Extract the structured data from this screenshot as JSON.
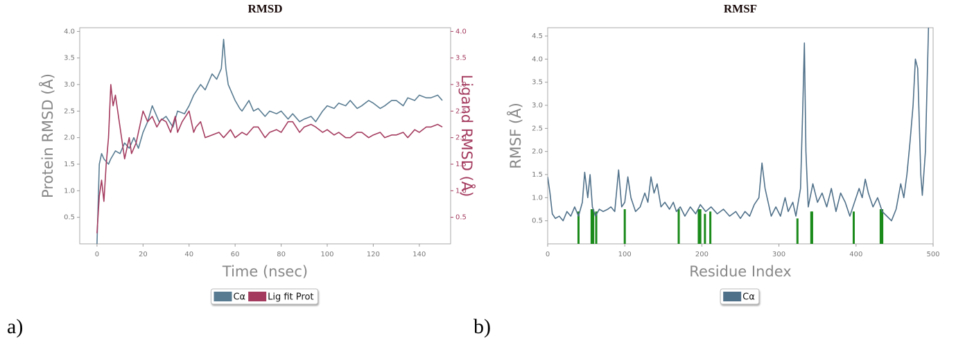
{
  "chart_data": [
    {
      "type": "line",
      "panel_label": "a)",
      "title": "RMSD",
      "xlabel": "Time (nsec)",
      "ylabel": "Protein RMSD (Å)",
      "y2label": "Ligand RMSD (Å)",
      "xlim": [
        -7.5,
        153.6
      ],
      "xticks": [
        0,
        20,
        40,
        60,
        80,
        100,
        120,
        140
      ],
      "ylim": [
        0,
        4.07
      ],
      "yticks": [
        0.5,
        {
          "value": 1,
          "label": "1.0"
        },
        1.5,
        {
          "value": 2,
          "label": "2.0"
        },
        2.5,
        {
          "value": 3,
          "label": "3.0"
        },
        3.5,
        {
          "value": 4,
          "label": "4.0"
        }
      ],
      "y2lim": [
        0,
        4.07
      ],
      "y2ticks": [
        0.5,
        {
          "value": 1,
          "label": "1.0"
        },
        1.5,
        {
          "value": 2,
          "label": "2.0"
        },
        2.5,
        {
          "value": 3,
          "label": "3.0"
        },
        3.5,
        {
          "value": 4,
          "label": "4.0"
        }
      ],
      "series": [
        {
          "name": "Cα",
          "color": "#587b91",
          "x": [
            0,
            1,
            2,
            3,
            5,
            6,
            8,
            10,
            12,
            14,
            16,
            18,
            20,
            22,
            24,
            25,
            27,
            30,
            33,
            35,
            38,
            40,
            42,
            45,
            47,
            50,
            52,
            54,
            55,
            56,
            57,
            60,
            62,
            63,
            66,
            68,
            70,
            73,
            75,
            78,
            80,
            83,
            85,
            88,
            90,
            93,
            95,
            98,
            100,
            103,
            105,
            108,
            110,
            113,
            115,
            118,
            120,
            123,
            125,
            128,
            130,
            133,
            135,
            138,
            140,
            143,
            145,
            148,
            150
          ],
          "values": [
            0,
            1.5,
            1.7,
            1.6,
            1.5,
            1.6,
            1.75,
            1.7,
            1.9,
            1.8,
            2.0,
            1.8,
            2.1,
            2.3,
            2.6,
            2.5,
            2.3,
            2.4,
            2.2,
            2.5,
            2.45,
            2.6,
            2.8,
            3.0,
            2.9,
            3.2,
            3.1,
            3.3,
            3.85,
            3.3,
            3.0,
            2.7,
            2.55,
            2.5,
            2.7,
            2.5,
            2.55,
            2.4,
            2.5,
            2.45,
            2.5,
            2.35,
            2.45,
            2.3,
            2.35,
            2.4,
            2.3,
            2.5,
            2.6,
            2.55,
            2.65,
            2.6,
            2.7,
            2.55,
            2.6,
            2.7,
            2.65,
            2.55,
            2.6,
            2.7,
            2.7,
            2.6,
            2.75,
            2.7,
            2.8,
            2.75,
            2.75,
            2.8,
            2.7
          ]
        },
        {
          "name": "Lig fit Prot",
          "color": "#a43b5f",
          "axis": "y2",
          "x": [
            0,
            1,
            2,
            3,
            4,
            5,
            6,
            7,
            8,
            10,
            11,
            12,
            14,
            15,
            17,
            20,
            22,
            24,
            26,
            28,
            30,
            32,
            34,
            35,
            37,
            40,
            42,
            43,
            45,
            47,
            50,
            53,
            55,
            58,
            60,
            63,
            65,
            68,
            70,
            73,
            75,
            78,
            80,
            83,
            85,
            88,
            90,
            93,
            95,
            98,
            100,
            103,
            105,
            108,
            110,
            113,
            115,
            118,
            120,
            123,
            125,
            128,
            130,
            133,
            135,
            138,
            140,
            143,
            145,
            148,
            150
          ],
          "values": [
            0.2,
            0.9,
            1.2,
            0.8,
            1.5,
            2.0,
            3.0,
            2.6,
            2.8,
            2.2,
            1.9,
            1.6,
            2.0,
            1.7,
            1.9,
            2.5,
            2.3,
            2.4,
            2.2,
            2.35,
            2.3,
            2.1,
            2.4,
            2.1,
            2.3,
            2.5,
            2.1,
            2.2,
            2.3,
            2.0,
            2.05,
            2.1,
            2.0,
            2.15,
            2.0,
            2.1,
            2.05,
            2.2,
            2.2,
            2.0,
            2.1,
            2.15,
            2.1,
            2.3,
            2.3,
            2.1,
            2.2,
            2.25,
            2.2,
            2.1,
            2.15,
            2.05,
            2.1,
            2.0,
            2.0,
            2.1,
            2.1,
            2.0,
            2.05,
            2.1,
            2.0,
            2.05,
            2.05,
            2.1,
            2.0,
            2.15,
            2.1,
            2.2,
            2.2,
            2.25,
            2.2
          ]
        }
      ]
    },
    {
      "type": "line",
      "panel_label": "b)",
      "title": "RMSF",
      "xlabel": "Residue Index",
      "ylabel": "RMSF (Å)",
      "xlim": [
        0,
        500
      ],
      "xticks": [
        0,
        100,
        200,
        300,
        400,
        500
      ],
      "ylim": [
        0,
        4.68
      ],
      "yticks": [
        0.5,
        {
          "value": 1,
          "label": "1.0"
        },
        1.5,
        {
          "value": 2,
          "label": "2.0"
        },
        2.5,
        {
          "value": 3,
          "label": "3.0"
        },
        3.5,
        {
          "value": 4,
          "label": "4.0"
        },
        4.5
      ],
      "series": [
        {
          "name": "Cα",
          "color": "#4f7089",
          "x": [
            0,
            3,
            6,
            10,
            15,
            20,
            25,
            30,
            35,
            40,
            45,
            48,
            52,
            55,
            58,
            62,
            67,
            72,
            78,
            82,
            87,
            92,
            96,
            100,
            104,
            108,
            114,
            120,
            126,
            130,
            134,
            138,
            142,
            147,
            152,
            158,
            163,
            167,
            172,
            178,
            185,
            192,
            198,
            205,
            212,
            220,
            228,
            236,
            244,
            250,
            256,
            262,
            268,
            274,
            278,
            282,
            286,
            290,
            296,
            302,
            308,
            312,
            318,
            322,
            328,
            331,
            333,
            335,
            338,
            344,
            350,
            356,
            362,
            368,
            374,
            380,
            386,
            392,
            398,
            404,
            408,
            412,
            416,
            422,
            428,
            434,
            440,
            446,
            452,
            458,
            462,
            466,
            470,
            474,
            477,
            480,
            484,
            486,
            490,
            494
          ],
          "values": [
            1.45,
            1.1,
            0.65,
            0.55,
            0.6,
            0.5,
            0.7,
            0.6,
            0.8,
            0.6,
            0.9,
            1.55,
            1.0,
            1.5,
            0.8,
            0.6,
            0.75,
            0.7,
            0.75,
            0.8,
            0.7,
            1.6,
            0.8,
            0.9,
            1.45,
            1.0,
            0.7,
            0.8,
            1.1,
            0.9,
            1.45,
            1.1,
            1.3,
            0.8,
            0.9,
            0.75,
            0.9,
            0.7,
            0.8,
            0.6,
            0.8,
            0.65,
            0.85,
            0.7,
            0.8,
            0.65,
            0.75,
            0.6,
            0.7,
            0.55,
            0.7,
            0.6,
            0.85,
            1.0,
            1.75,
            1.2,
            0.9,
            0.6,
            0.8,
            0.6,
            1.0,
            0.7,
            0.9,
            0.6,
            1.2,
            3.0,
            4.35,
            2.0,
            0.8,
            1.3,
            0.9,
            1.1,
            0.8,
            1.2,
            0.7,
            1.1,
            0.9,
            0.6,
            0.9,
            1.2,
            1.0,
            1.4,
            1.1,
            0.8,
            1.0,
            0.7,
            0.6,
            0.5,
            0.75,
            1.3,
            1.0,
            1.5,
            2.2,
            3.0,
            4.0,
            3.8,
            1.5,
            1.05,
            2.0,
            4.68
          ]
        }
      ],
      "contacts": {
        "color": "#1a8a1a",
        "x": [
          40,
          57,
          59,
          63,
          100,
          170,
          196,
          198,
          204,
          211,
          324,
          342,
          343,
          397,
          432,
          434
        ],
        "values": [
          0.7,
          0.75,
          0.75,
          0.7,
          0.75,
          0.75,
          0.75,
          0.75,
          0.65,
          0.7,
          0.55,
          0.7,
          0.7,
          0.7,
          0.75,
          0.75
        ]
      }
    }
  ]
}
